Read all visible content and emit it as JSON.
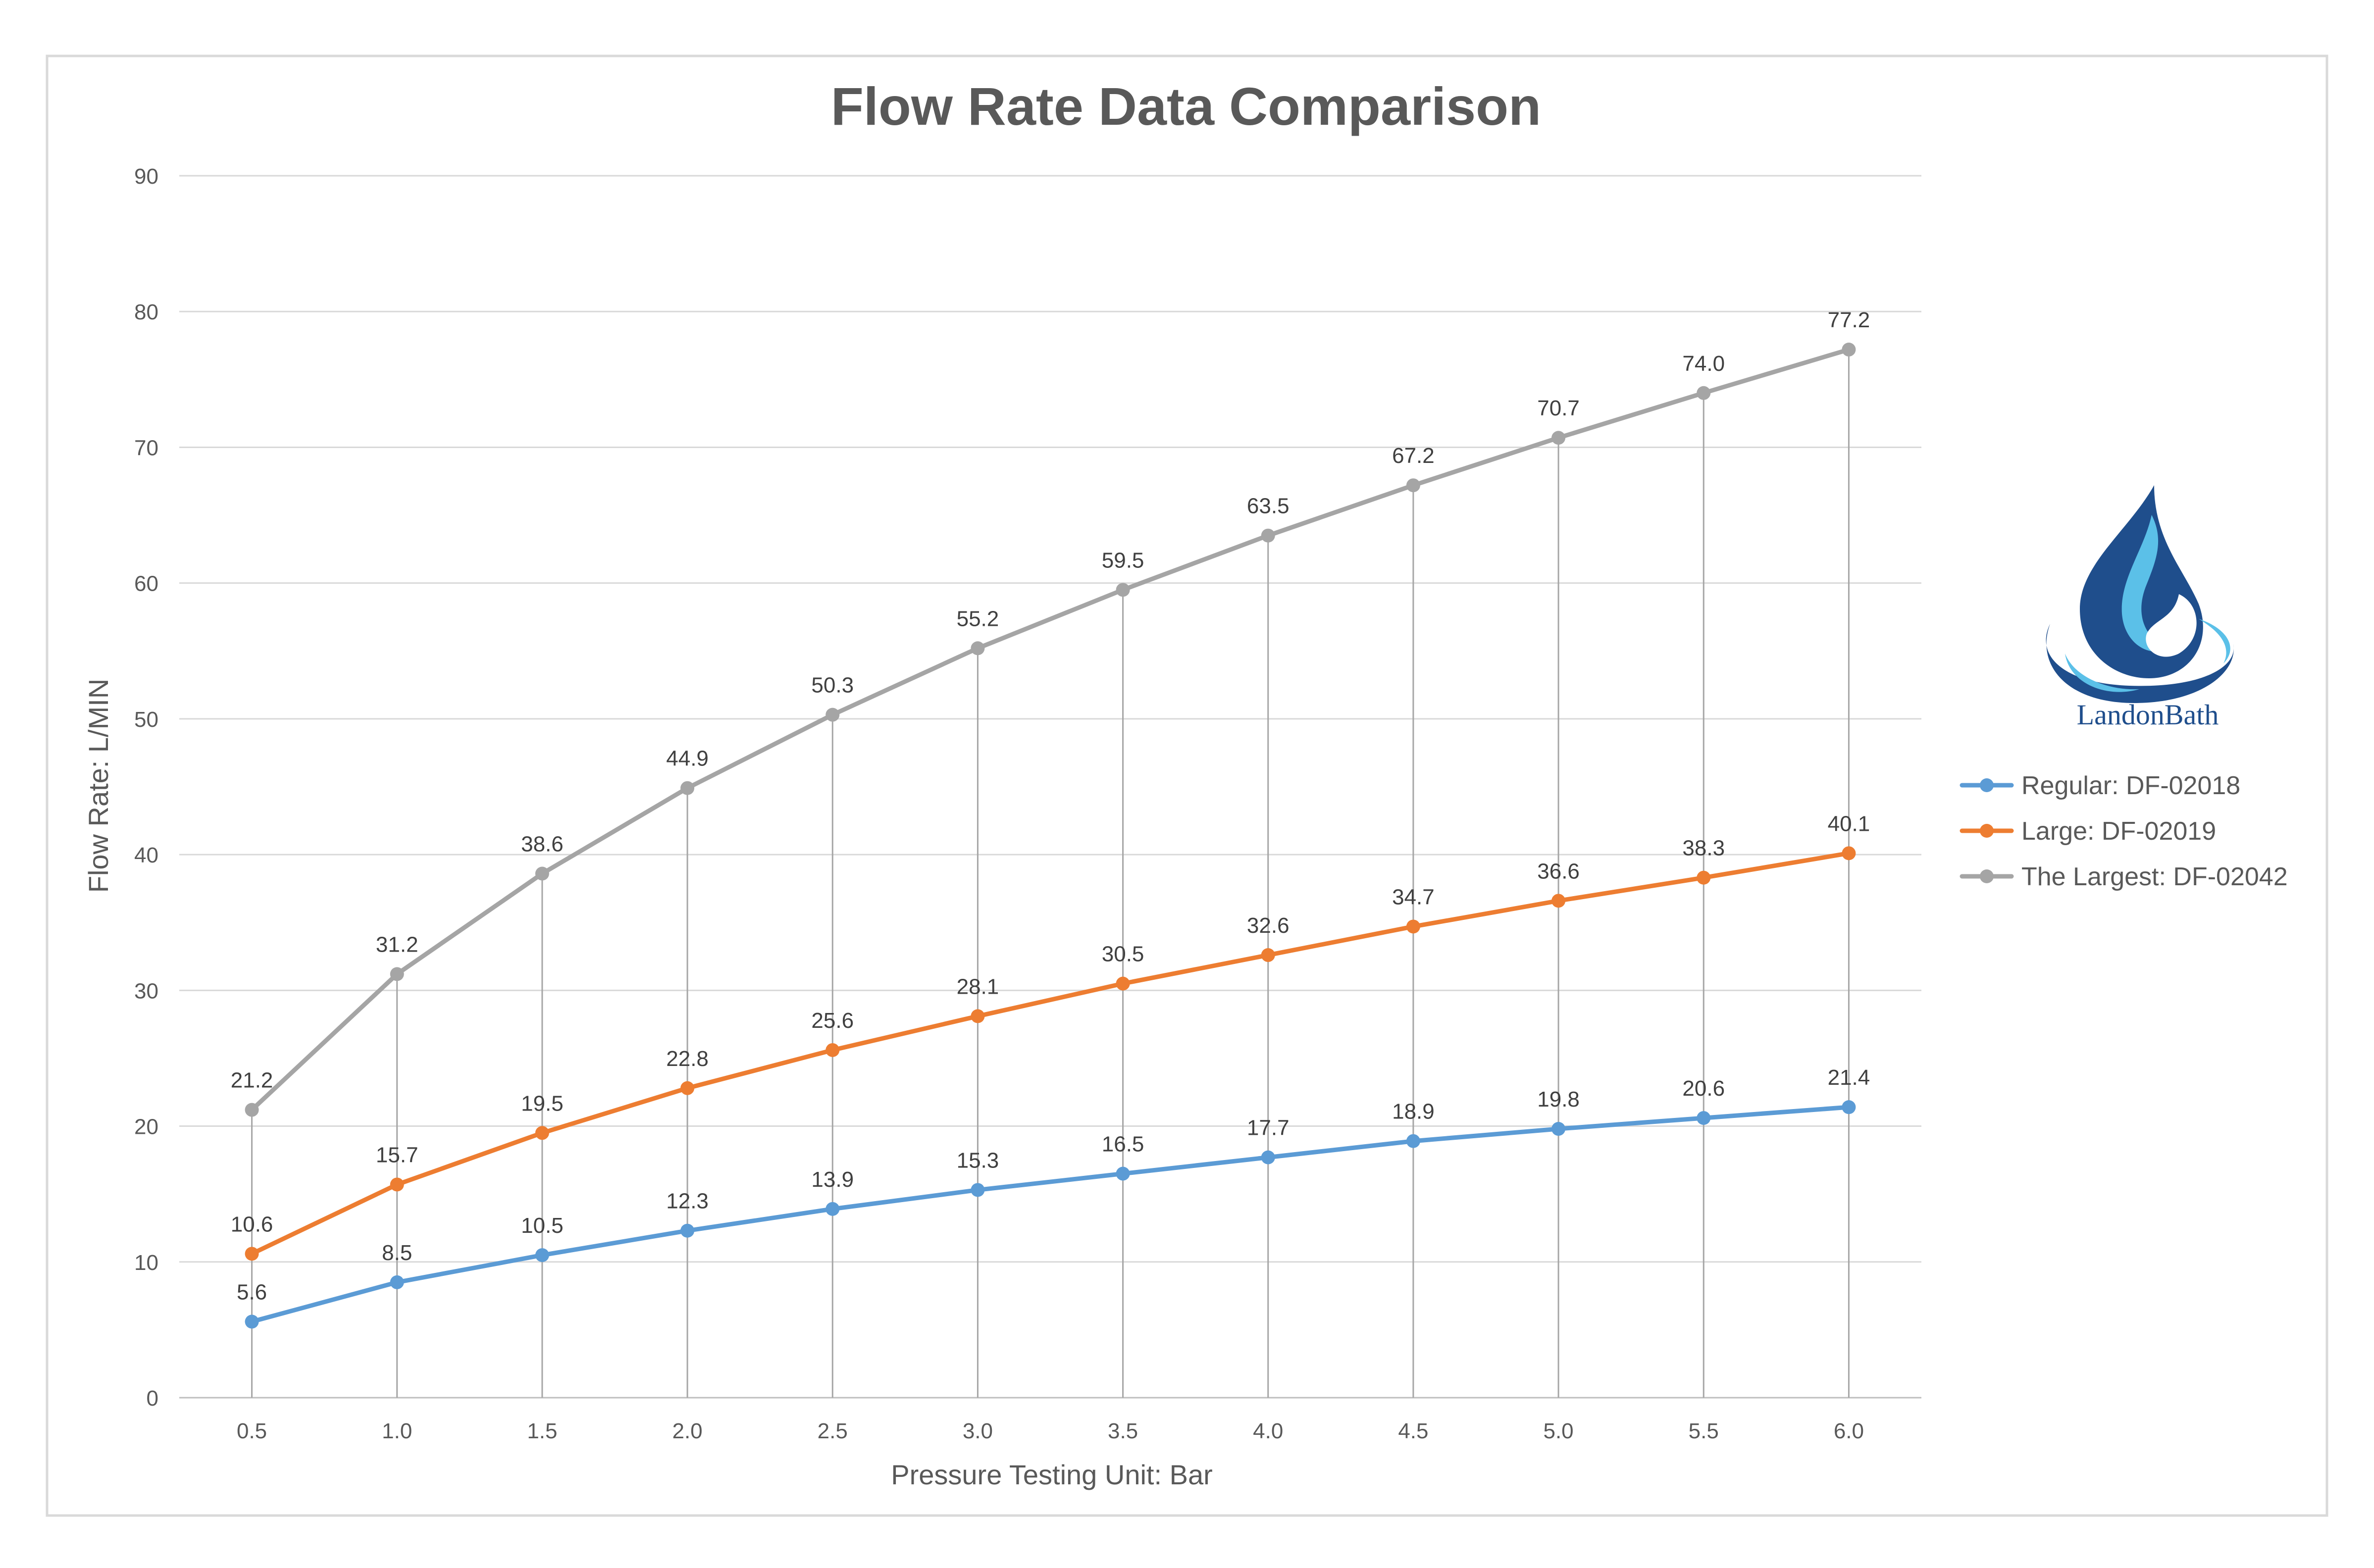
{
  "brand": {
    "name": "LandonBath"
  },
  "colors": {
    "regular": "#5b9bd5",
    "large": "#ed7d31",
    "largest": "#a5a5a5",
    "title": "#595959",
    "axis_text": "#595959",
    "grid": "#d9d9d9",
    "drop_line": "#a6a6a6",
    "frame": "#d9d9d9",
    "logo_dark": "#1f4e8c",
    "logo_light": "#5bc0e8"
  },
  "chart_data": {
    "type": "line",
    "title": "Flow Rate Data Comparison",
    "xlabel": "Pressure Testing Unit: Bar",
    "ylabel": "Flow Rate: L/MIN",
    "ylim": [
      0,
      90
    ],
    "yticks": [
      0,
      10,
      20,
      30,
      40,
      50,
      60,
      70,
      80,
      90
    ],
    "categories": [
      "0.5",
      "1.0",
      "1.5",
      "2.0",
      "2.5",
      "3.0",
      "3.5",
      "4.0",
      "4.5",
      "5.0",
      "5.5",
      "6.0"
    ],
    "grid": "horizontal",
    "drop_lines": true,
    "legend_position": "right",
    "series": [
      {
        "name": "Regular: DF-02018",
        "color_key": "regular",
        "values": [
          5.6,
          8.5,
          10.5,
          12.3,
          13.9,
          15.3,
          16.5,
          17.7,
          18.9,
          19.8,
          20.6,
          21.4
        ],
        "labels": [
          "5.6",
          "8.5",
          "10.5",
          "12.3",
          "13.9",
          "15.3",
          "16.5",
          "17.7",
          "18.9",
          "19.8",
          "20.6",
          "21.4"
        ]
      },
      {
        "name": "Large: DF-02019",
        "color_key": "large",
        "values": [
          10.6,
          15.7,
          19.5,
          22.8,
          25.6,
          28.1,
          30.5,
          32.6,
          34.7,
          36.6,
          38.3,
          40.1
        ],
        "labels": [
          "10.6",
          "15.7",
          "19.5",
          "22.8",
          "25.6",
          "28.1",
          "30.5",
          "32.6",
          "34.7",
          "36.6",
          "38.3",
          "40.1"
        ]
      },
      {
        "name": "The Largest: DF-02042",
        "color_key": "largest",
        "values": [
          21.2,
          31.2,
          38.6,
          44.9,
          50.3,
          55.2,
          59.5,
          63.5,
          67.2,
          70.7,
          74.0,
          77.2
        ],
        "labels": [
          "21.2",
          "31.2",
          "38.6",
          "44.9",
          "50.3",
          "55.2",
          "59.5",
          "63.5",
          "67.2",
          "70.7",
          "74.0",
          "77.2"
        ]
      }
    ]
  }
}
